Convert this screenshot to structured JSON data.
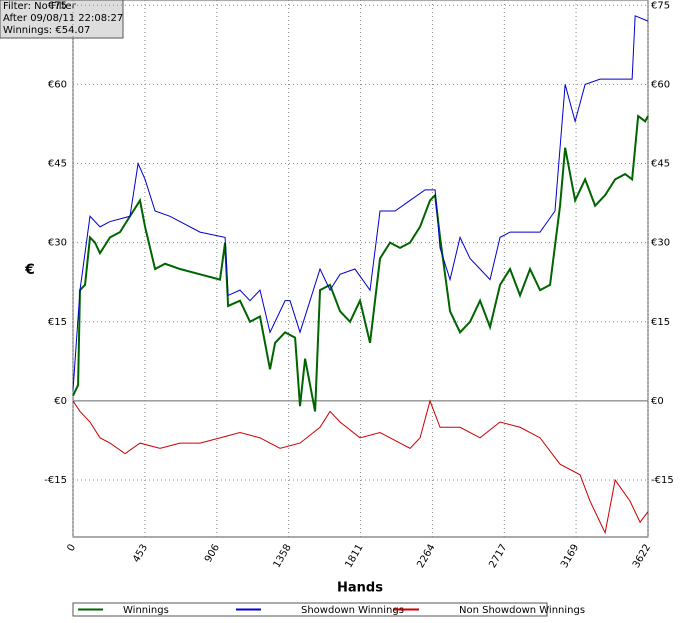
{
  "chart_data": {
    "type": "line",
    "info": [
      "Filter: No Filter",
      "After 09/08/11 22:08:27",
      "Winnings: €54.07"
    ],
    "xlabel": "Hands",
    "ylabel": "€",
    "xlim": [
      0,
      3622
    ],
    "xticks": [
      0,
      453,
      906,
      1358,
      1811,
      2264,
      2717,
      3169,
      3622
    ],
    "ylim": [
      -25.8,
      76
    ],
    "yticks": [
      {
        "value": 75,
        "label": "€75"
      },
      {
        "value": 60,
        "label": "€60"
      },
      {
        "value": 45,
        "label": "€45"
      },
      {
        "value": 30,
        "label": "€30"
      },
      {
        "value": 15,
        "label": "€15"
      },
      {
        "value": 0,
        "label": "€0"
      },
      {
        "value": -15,
        "label": "-€15"
      }
    ],
    "grid": true,
    "series": [
      {
        "name": "Winnings",
        "color": "#006400",
        "x": [
          0,
          32,
          44,
          76,
          107,
          139,
          170,
          233,
          296,
          359,
          422,
          454,
          517,
          580,
          674,
          800,
          926,
          958,
          977,
          1052,
          1115,
          1178,
          1241,
          1273,
          1336,
          1399,
          1430,
          1462,
          1525,
          1556,
          1619,
          1682,
          1745,
          1808,
          1871,
          1934,
          1997,
          2060,
          2123,
          2186,
          2249,
          2281,
          2312,
          2375,
          2438,
          2501,
          2564,
          2627,
          2690,
          2753,
          2816,
          2879,
          2942,
          3005,
          3068,
          3100,
          3163,
          3226,
          3289,
          3352,
          3415,
          3478,
          3522,
          3560,
          3604,
          3622
        ],
        "values": [
          1,
          3,
          21,
          22,
          31,
          30,
          28,
          31,
          32,
          35,
          38,
          33,
          25,
          26,
          25,
          24,
          23,
          30,
          18,
          19,
          15,
          16,
          6,
          11,
          13,
          12,
          -1,
          8,
          -2,
          21,
          22,
          17,
          15,
          19,
          11,
          27,
          30,
          29,
          30,
          33,
          38,
          39,
          31,
          17,
          13,
          15,
          19,
          14,
          22,
          25,
          20,
          25,
          21,
          22,
          37,
          48,
          38,
          42,
          37,
          39,
          42,
          43,
          42,
          54,
          53,
          54
        ]
      },
      {
        "name": "Showdown Winnings",
        "color": "#0000cc",
        "x": [
          0,
          44,
          107,
          170,
          233,
          359,
          410,
          454,
          517,
          611,
          800,
          958,
          977,
          1052,
          1115,
          1178,
          1241,
          1336,
          1367,
          1430,
          1493,
          1556,
          1619,
          1682,
          1776,
          1871,
          1934,
          2029,
          2123,
          2218,
          2281,
          2312,
          2375,
          2438,
          2501,
          2564,
          2627,
          2690,
          2753,
          2816,
          2942,
          3036,
          3100,
          3163,
          3226,
          3320,
          3522,
          3541,
          3622
        ],
        "values": [
          2,
          21,
          35,
          33,
          34,
          35,
          45,
          42,
          36,
          35,
          32,
          31,
          20,
          21,
          19,
          21,
          13,
          19,
          19,
          13,
          19,
          25,
          21,
          24,
          25,
          21,
          36,
          36,
          38,
          40,
          40,
          29,
          23,
          31,
          27,
          25,
          23,
          31,
          32,
          32,
          32,
          36,
          60,
          53,
          60,
          61,
          61,
          73,
          72
        ]
      },
      {
        "name": "Non Showdown Winnings",
        "color": "#cc0000",
        "x": [
          0,
          44,
          107,
          170,
          233,
          328,
          422,
          548,
          674,
          800,
          926,
          1052,
          1178,
          1304,
          1430,
          1556,
          1619,
          1682,
          1808,
          1934,
          2060,
          2123,
          2186,
          2249,
          2312,
          2438,
          2564,
          2690,
          2816,
          2942,
          3068,
          3194,
          3257,
          3320,
          3352,
          3415,
          3509,
          3572,
          3622
        ],
        "values": [
          0,
          -2,
          -4,
          -7,
          -8,
          -10,
          -8,
          -9,
          -8,
          -8,
          -7,
          -6,
          -7,
          -9,
          -8,
          -5,
          -2,
          -4,
          -7,
          -6,
          -8,
          -9,
          -7,
          0,
          -5,
          -5,
          -7,
          -4,
          -5,
          -7,
          -12,
          -14,
          -19,
          -23,
          -25,
          -15,
          -19,
          -23,
          -21
        ]
      }
    ]
  }
}
